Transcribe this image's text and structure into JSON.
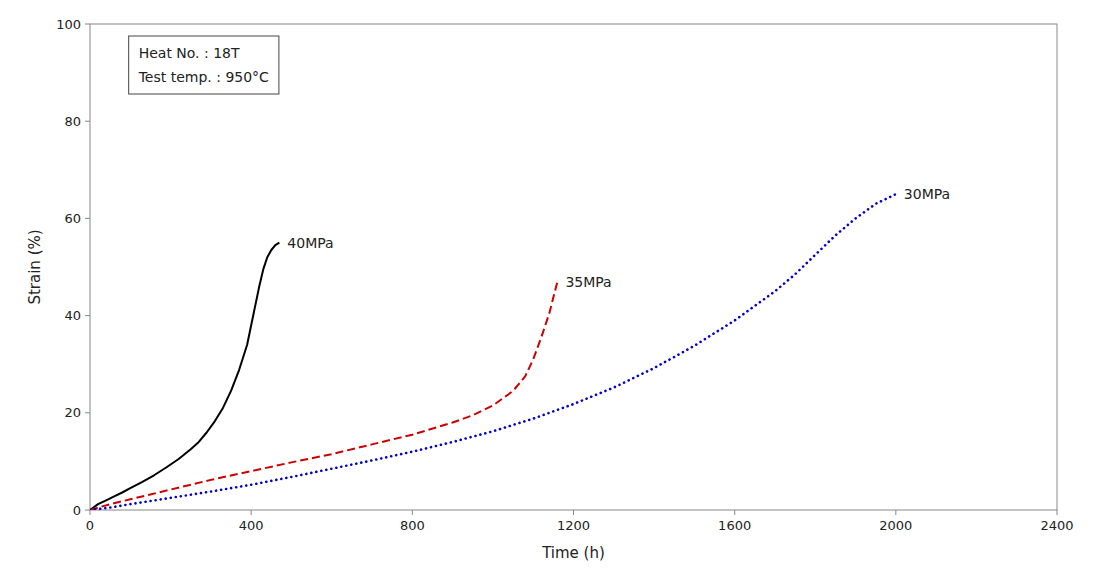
{
  "chart_data": {
    "type": "line",
    "xlabel": "Time (h)",
    "ylabel": "Strain (%)",
    "xlim": [
      0,
      2400
    ],
    "ylim": [
      0,
      100
    ],
    "xticks": [
      0,
      400,
      800,
      1200,
      1600,
      2000,
      2400
    ],
    "yticks": [
      0,
      20,
      40,
      60,
      80,
      100
    ],
    "grid": false,
    "annotations": [
      "Heat No. : 18T",
      "Test temp. : 950°C"
    ],
    "series": [
      {
        "name": "40MPa",
        "color": "#000000",
        "line_style": "solid",
        "x": [
          0,
          5,
          10,
          20,
          40,
          60,
          80,
          100,
          130,
          160,
          190,
          220,
          250,
          270,
          290,
          310,
          330,
          350,
          370,
          390,
          400,
          410,
          420,
          430,
          440,
          450,
          460,
          470
        ],
        "values": [
          0,
          0.3,
          0.6,
          1.2,
          2.0,
          2.8,
          3.6,
          4.5,
          5.8,
          7.2,
          8.8,
          10.5,
          12.5,
          14.0,
          16.0,
          18.3,
          21.0,
          24.5,
          28.8,
          34.0,
          38.0,
          42.0,
          46.0,
          49.5,
          52.0,
          53.5,
          54.5,
          55.0
        ]
      },
      {
        "name": "35MPa",
        "color": "#cc0000",
        "line_style": "dashed",
        "x": [
          0,
          20,
          50,
          100,
          150,
          200,
          300,
          400,
          500,
          600,
          700,
          800,
          900,
          950,
          1000,
          1050,
          1080,
          1100,
          1120,
          1140,
          1160
        ],
        "values": [
          0,
          0.5,
          1.2,
          2.2,
          3.2,
          4.2,
          6.2,
          8.0,
          9.8,
          11.5,
          13.5,
          15.5,
          18.0,
          19.5,
          21.5,
          24.5,
          27.5,
          31.0,
          35.5,
          40.5,
          47.0
        ]
      },
      {
        "name": "30MPa",
        "color": "#0000cc",
        "line_style": "dotted",
        "x": [
          0,
          50,
          100,
          200,
          300,
          400,
          500,
          600,
          700,
          800,
          900,
          1000,
          1100,
          1200,
          1300,
          1400,
          1500,
          1600,
          1700,
          1750,
          1800,
          1850,
          1900,
          1950,
          2000
        ],
        "values": [
          0,
          0.5,
          1.2,
          2.5,
          3.8,
          5.2,
          6.8,
          8.5,
          10.2,
          12.0,
          14.0,
          16.2,
          18.8,
          21.8,
          25.2,
          29.2,
          33.8,
          39.0,
          45.0,
          48.5,
          52.5,
          56.5,
          60.0,
          63.0,
          65.0
        ]
      }
    ]
  }
}
